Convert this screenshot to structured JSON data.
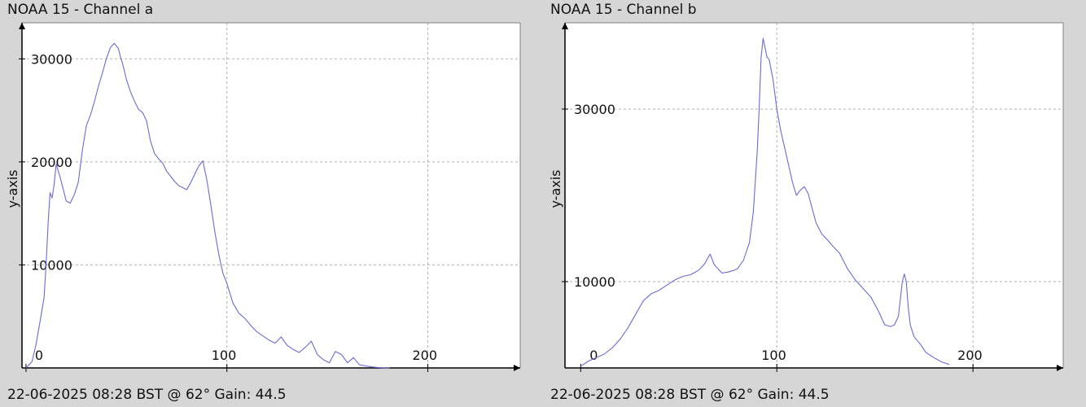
{
  "charts": [
    {
      "title": "NOAA 15 - Channel a",
      "footer": "22-06-2025 08:28 BST @ 62° Gain: 44.5"
    },
    {
      "title": "NOAA 15 - Channel b",
      "footer": "22-06-2025 08:28 BST @ 62° Gain: 44.5"
    }
  ],
  "chart_data": [
    {
      "type": "line",
      "title": "NOAA 15 - Channel a",
      "ylabel": "y-axis",
      "xlim": [
        -2,
        246
      ],
      "ylim": [
        0,
        33500
      ],
      "x_ticks": [
        0,
        100,
        200
      ],
      "y_ticks": [
        10000,
        20000,
        30000
      ],
      "grid": true,
      "line_color": "#6b6bd4",
      "series": [
        {
          "x": [
            0,
            3,
            5,
            7,
            9,
            10,
            11,
            12,
            13,
            14,
            15,
            17,
            19,
            20,
            22,
            24,
            26,
            28,
            30,
            32,
            34,
            36,
            38,
            40,
            42,
            44,
            46,
            47,
            48,
            50,
            52,
            54,
            56,
            58,
            60,
            62,
            64,
            66,
            68,
            70,
            72,
            74,
            76,
            78,
            80,
            82,
            84,
            86,
            88,
            90,
            92,
            94,
            96,
            98,
            100,
            103,
            106,
            109,
            112,
            115,
            118,
            121,
            124,
            127,
            130,
            133,
            136,
            139,
            142,
            145,
            148,
            151,
            154,
            157,
            160,
            163,
            166,
            169,
            172,
            175,
            178,
            181
          ],
          "y": [
            0,
            600,
            2300,
            4500,
            6800,
            10000,
            14000,
            17000,
            16500,
            17800,
            19800,
            18500,
            17000,
            16200,
            16000,
            16800,
            18000,
            21000,
            23500,
            24500,
            25800,
            27300,
            28600,
            30000,
            31100,
            31500,
            31000,
            30200,
            29600,
            28000,
            26800,
            25900,
            25100,
            24800,
            24000,
            22000,
            20800,
            20300,
            19900,
            19100,
            18600,
            18100,
            17700,
            17500,
            17300,
            18000,
            18800,
            19600,
            20100,
            18300,
            15800,
            13200,
            11000,
            9200,
            8200,
            6300,
            5300,
            4800,
            4100,
            3500,
            3100,
            2700,
            2400,
            3000,
            2200,
            1800,
            1500,
            2000,
            2600,
            1300,
            800,
            500,
            1600,
            1300,
            500,
            1000,
            300,
            200,
            100,
            50,
            0,
            0
          ]
        }
      ]
    },
    {
      "type": "line",
      "title": "NOAA 15 - Channel b",
      "ylabel": "y-axis",
      "xlim": [
        -8,
        246
      ],
      "ylim": [
        0,
        40000
      ],
      "x_ticks": [
        0,
        100,
        200
      ],
      "y_ticks": [
        10000,
        30000
      ],
      "grid": true,
      "line_color": "#6b6bd4",
      "series": [
        {
          "x": [
            0,
            4,
            8,
            12,
            16,
            20,
            24,
            28,
            32,
            36,
            40,
            44,
            48,
            52,
            56,
            60,
            63,
            66,
            68,
            70,
            72,
            75,
            78,
            80,
            83,
            86,
            88,
            90,
            91,
            92,
            93,
            95,
            96,
            98,
            100,
            102,
            105,
            108,
            110,
            112,
            114,
            116,
            118,
            120,
            123,
            126,
            129,
            132,
            136,
            140,
            144,
            148,
            152,
            155,
            158,
            160,
            162,
            164,
            165,
            166,
            167,
            168,
            170,
            173,
            176,
            180,
            184,
            188
          ],
          "y": [
            200,
            800,
            1200,
            1600,
            2300,
            3300,
            4600,
            6200,
            7800,
            8600,
            9000,
            9600,
            10200,
            10600,
            10800,
            11300,
            12000,
            13200,
            12000,
            11500,
            11000,
            11100,
            11300,
            11500,
            12500,
            14500,
            18000,
            25000,
            30000,
            36000,
            38200,
            36000,
            35800,
            33500,
            30000,
            27500,
            24500,
            21500,
            20000,
            20600,
            21000,
            20200,
            18500,
            16800,
            15500,
            14800,
            14000,
            13300,
            11500,
            10200,
            9200,
            8200,
            6500,
            5000,
            4800,
            5000,
            6000,
            10000,
            10900,
            10000,
            7000,
            5000,
            3600,
            2800,
            1800,
            1200,
            700,
            400
          ]
        }
      ]
    }
  ]
}
